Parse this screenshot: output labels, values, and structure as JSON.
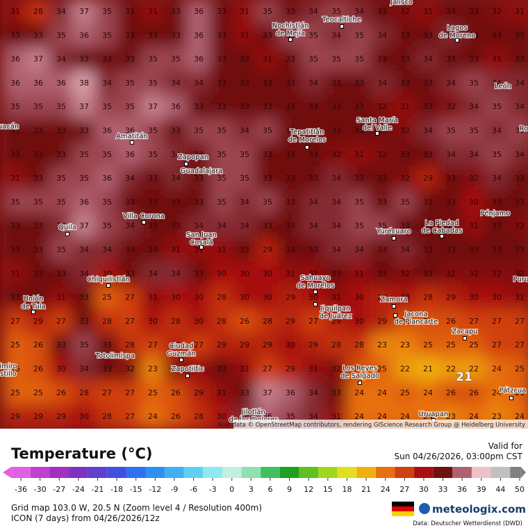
{
  "map": {
    "grid": [
      [
        31,
        28,
        34,
        37,
        35,
        33,
        31,
        33,
        36,
        33,
        31,
        35,
        33,
        34,
        35,
        34,
        33,
        32,
        31,
        33,
        33,
        32,
        31
      ],
      [
        33,
        33,
        35,
        36,
        35,
        33,
        33,
        33,
        36,
        33,
        31,
        33,
        35,
        35,
        34,
        35,
        34,
        33,
        33,
        34,
        33,
        33,
        33
      ],
      [
        36,
        37,
        34,
        33,
        33,
        33,
        35,
        35,
        36,
        33,
        33,
        31,
        33,
        35,
        35,
        35,
        33,
        33,
        34,
        33,
        33,
        31,
        33
      ],
      [
        36,
        36,
        36,
        38,
        34,
        35,
        35,
        34,
        34,
        33,
        33,
        33,
        33,
        34,
        33,
        33,
        34,
        33,
        33,
        34,
        35,
        34,
        34
      ],
      [
        35,
        35,
        35,
        37,
        35,
        35,
        37,
        36,
        33,
        33,
        33,
        33,
        33,
        33,
        33,
        33,
        32,
        31,
        33,
        32,
        34,
        35,
        34
      ],
      [
        33,
        33,
        33,
        33,
        36,
        36,
        35,
        33,
        35,
        35,
        34,
        35,
        33,
        33,
        33,
        33,
        33,
        32,
        34,
        35,
        35,
        34,
        35
      ],
      [
        33,
        33,
        33,
        35,
        35,
        36,
        35,
        34,
        33,
        35,
        35,
        33,
        33,
        33,
        32,
        31,
        32,
        33,
        33,
        34,
        34,
        35,
        34
      ],
      [
        31,
        33,
        35,
        35,
        36,
        34,
        33,
        34,
        33,
        35,
        35,
        33,
        33,
        33,
        34,
        33,
        33,
        32,
        29,
        33,
        32,
        34,
        33
      ],
      [
        35,
        35,
        35,
        36,
        35,
        33,
        33,
        33,
        33,
        35,
        34,
        35,
        33,
        34,
        34,
        35,
        33,
        35,
        33,
        33,
        30,
        33,
        33
      ],
      [
        33,
        33,
        34,
        37,
        35,
        34,
        33,
        33,
        34,
        34,
        34,
        33,
        33,
        34,
        34,
        35,
        35,
        33,
        33,
        33,
        31,
        33,
        32
      ],
      [
        33,
        33,
        35,
        34,
        34,
        33,
        33,
        31,
        31,
        31,
        33,
        29,
        33,
        33,
        34,
        34,
        33,
        34,
        33,
        33,
        33,
        33,
        33
      ],
      [
        31,
        33,
        33,
        34,
        30,
        33,
        34,
        34,
        33,
        30,
        30,
        30,
        31,
        31,
        33,
        31,
        33,
        32,
        33,
        32,
        32,
        32,
        32
      ],
      [
        33,
        33,
        31,
        33,
        25,
        27,
        31,
        30,
        30,
        28,
        30,
        30,
        29,
        30,
        31,
        30,
        29,
        30,
        28,
        29,
        30,
        30,
        31
      ],
      [
        27,
        29,
        27,
        33,
        28,
        27,
        30,
        28,
        30,
        28,
        26,
        28,
        29,
        27,
        29,
        30,
        29,
        26,
        26,
        26,
        27,
        27,
        27
      ],
      [
        25,
        26,
        33,
        35,
        33,
        28,
        27,
        29,
        27,
        29,
        29,
        29,
        30,
        29,
        28,
        28,
        23,
        23,
        25,
        25,
        25,
        27,
        27
      ],
      [
        25,
        26,
        30,
        34,
        33,
        32,
        23,
        32,
        31,
        33,
        31,
        27,
        29,
        31,
        32,
        26,
        25,
        22,
        21,
        22,
        22,
        24,
        25
      ],
      [
        25,
        25,
        26,
        28,
        27,
        27,
        25,
        26,
        29,
        31,
        33,
        37,
        36,
        34,
        33,
        24,
        24,
        25,
        24,
        26,
        26,
        24,
        25
      ],
      [
        29,
        29,
        29,
        30,
        28,
        27,
        24,
        26,
        28,
        30,
        34,
        36,
        35,
        34,
        31,
        24,
        24,
        24,
        24,
        23,
        24,
        23,
        24
      ]
    ],
    "marker_value": 21,
    "cities": [
      [
        "Nochistlán",
        "de Mejía"
      ],
      [
        "Teocaltiche"
      ],
      [
        "Jalisco"
      ],
      [
        "Lagos",
        "de Moreno"
      ],
      [
        "León"
      ],
      [
        "Tepatitlán",
        "de Morelos"
      ],
      [
        "Santa María",
        "del Valle"
      ],
      [
        "Amatitán"
      ],
      [
        "Zapopan"
      ],
      [
        "Guadalajara"
      ],
      [
        "Villa Corona"
      ],
      [
        "Quila"
      ],
      [
        "San Juan",
        "Cosalá"
      ],
      [
        "Yurécuaro"
      ],
      [
        "La Piedad",
        "de Cabadas"
      ],
      [
        "Pénjamo"
      ],
      [
        "Chiquilistlán"
      ],
      [
        "Unión",
        "de Tula"
      ],
      [
        "Sahuayo",
        "de Morelos"
      ],
      [
        "Jiquilpan",
        "de Juárez"
      ],
      [
        "Zamora"
      ],
      [
        "Jacona",
        "de Plancarte"
      ],
      [
        "Zacapu"
      ],
      [
        "Ciudad",
        "Guzmán"
      ],
      [
        "Totolimispa"
      ],
      [
        "Zapotiltic"
      ],
      [
        "Los Reyes",
        "de Salgado"
      ],
      [
        "Uruapan"
      ],
      [
        "Pátzcua"
      ],
      [
        "Jilotlán",
        "de los Dolores"
      ],
      [
        "uacán"
      ],
      [
        "Puru"
      ],
      [
        "Ro"
      ],
      [
        "imiro",
        "stillo"
      ]
    ],
    "attribution": "Map data © OpenStreetMap contributors, rendering GIScience Research Group @ Heidelberg University"
  },
  "legend": {
    "title": "Temperature (°C)",
    "ticks": [
      -36,
      -30,
      -27,
      -24,
      -21,
      -18,
      -15,
      -12,
      -9,
      -6,
      -3,
      0,
      3,
      6,
      9,
      12,
      15,
      18,
      21,
      24,
      27,
      30,
      33,
      36,
      39,
      44,
      50
    ],
    "colors": [
      "#e060e0",
      "#c040d0",
      "#a030c0",
      "#8030c0",
      "#6040d0",
      "#4050e0",
      "#3070f0",
      "#3090f0",
      "#40b0f0",
      "#60d0f0",
      "#90e8f0",
      "#c0f0e0",
      "#90e0b0",
      "#40c060",
      "#20a020",
      "#60c020",
      "#a0d820",
      "#e0e020",
      "#f0b010",
      "#e87010",
      "#d04010",
      "#a81010",
      "#701010",
      "#b06070",
      "#f0c0c8",
      "#c0c0c0",
      "#808080"
    ]
  },
  "valid": {
    "label": "Valid for",
    "time": "Sun 04/26/2026, 03:00pm CST"
  },
  "footer": {
    "grid_info": "Grid map 103.0 W, 20.5 N (Zoom level 4 / Resolution 400m)",
    "model_info": "ICON (7 days) from 04/26/2026/12z",
    "brand": "meteologix.com",
    "source": "Data: Deutscher Wetterdienst (DWD)"
  }
}
